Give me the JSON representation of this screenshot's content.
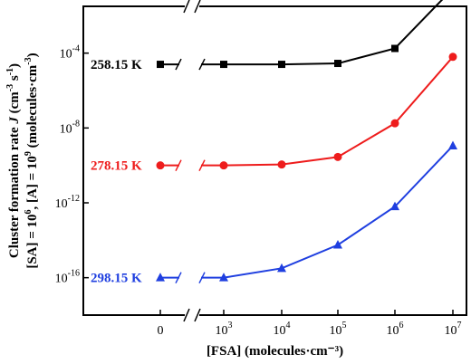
{
  "chart_data": {
    "type": "line",
    "x_categories": [
      "0",
      "10^3",
      "10^4",
      "10^5",
      "10^6",
      "10^7"
    ],
    "x_tick_labels": [
      {
        "base": "0",
        "exp": ""
      },
      {
        "base": "10",
        "exp": "3"
      },
      {
        "base": "10",
        "exp": "4"
      },
      {
        "base": "10",
        "exp": "5"
      },
      {
        "base": "10",
        "exp": "6"
      },
      {
        "base": "10",
        "exp": "7"
      }
    ],
    "y_scale": "log",
    "y_log10_range": [
      -18,
      -1.5
    ],
    "y_ticks_log10": [
      -4,
      -8,
      -12,
      -16
    ],
    "y_tick_labels": [
      {
        "base": "10",
        "exp": "-4"
      },
      {
        "base": "10",
        "exp": "-8"
      },
      {
        "base": "10",
        "exp": "-12"
      },
      {
        "base": "10",
        "exp": "-16"
      }
    ],
    "xlabel": "[FSA] (molecules·cm⁻³)",
    "ylabel_line1": {
      "pre": "Cluster formation rate ",
      "var": "J",
      "mid": " (cm",
      "e1": "-3",
      "mid2": " s",
      "e2": "-1",
      "post": ")"
    },
    "ylabel_line2": {
      "pre": "[SA] = 10",
      "e1": "6",
      "mid": ", [A] = 10",
      "e2": "9",
      "post": " (molecules·cm",
      "e3": "-3",
      "end": ")"
    },
    "axis_breaks": [
      "x",
      "top"
    ],
    "series": [
      {
        "name": "258.15 K",
        "color": "#000000",
        "marker": "square",
        "log10_values": [
          -4.6,
          -4.6,
          -4.6,
          -4.55,
          -3.75,
          -0.55
        ]
      },
      {
        "name": "278.15 K",
        "color": "#ee1c1c",
        "marker": "circle",
        "log10_values": [
          -10.0,
          -10.0,
          -9.95,
          -9.55,
          -7.75,
          -4.2
        ]
      },
      {
        "name": "298.15 K",
        "color": "#1f3fe0",
        "marker": "triangle",
        "log10_values": [
          -16.0,
          -16.0,
          -15.5,
          -14.25,
          -12.2,
          -8.95
        ]
      }
    ]
  }
}
